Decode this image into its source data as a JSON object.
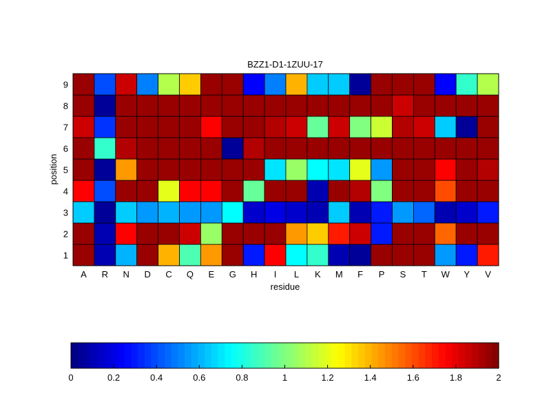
{
  "chart_data": {
    "type": "heatmap",
    "title": "BZZ1-D1-1ZUU-17",
    "xlabel": "residue",
    "ylabel": "position",
    "x": [
      "A",
      "R",
      "N",
      "D",
      "C",
      "Q",
      "E",
      "G",
      "H",
      "I",
      "L",
      "K",
      "M",
      "F",
      "P",
      "S",
      "T",
      "W",
      "Y",
      "V"
    ],
    "y": [
      "1",
      "2",
      "3",
      "4",
      "5",
      "6",
      "7",
      "8",
      "9"
    ],
    "values": [
      [
        1.95,
        0.1,
        0.6,
        1.95,
        1.4,
        0.9,
        1.45,
        1.95,
        0.3,
        1.75,
        0.75,
        0.85,
        0.1,
        0.05,
        1.95,
        1.95,
        1.95,
        0.55,
        0.3,
        1.7
      ],
      [
        1.95,
        0.1,
        1.75,
        1.95,
        1.95,
        1.85,
        1.05,
        1.95,
        1.95,
        1.95,
        1.45,
        1.35,
        1.7,
        1.85,
        0.3,
        1.95,
        1.95,
        1.55,
        1.95,
        1.95
      ],
      [
        0.65,
        0.05,
        0.65,
        0.55,
        0.6,
        0.55,
        0.55,
        0.75,
        0.15,
        0.2,
        0.15,
        0.1,
        0.65,
        0.1,
        0.3,
        0.55,
        0.45,
        0.1,
        0.15,
        0.3
      ],
      [
        1.75,
        0.4,
        1.95,
        1.95,
        1.2,
        1.75,
        1.75,
        1.95,
        0.95,
        1.95,
        1.95,
        0.1,
        1.95,
        1.9,
        1.0,
        1.95,
        1.95,
        1.6,
        1.95,
        1.95
      ],
      [
        1.95,
        0.05,
        1.45,
        1.95,
        1.95,
        1.95,
        1.95,
        1.95,
        1.95,
        0.7,
        1.05,
        0.75,
        0.7,
        1.2,
        0.55,
        1.95,
        1.95,
        1.75,
        1.95,
        1.9
      ],
      [
        1.95,
        0.85,
        1.9,
        1.95,
        1.95,
        1.95,
        1.95,
        0.05,
        1.9,
        1.95,
        1.95,
        1.95,
        1.95,
        1.95,
        1.95,
        1.95,
        1.95,
        1.95,
        1.95,
        1.95
      ],
      [
        1.85,
        0.35,
        1.95,
        1.95,
        1.95,
        1.95,
        1.75,
        1.95,
        1.95,
        1.9,
        1.85,
        0.95,
        1.85,
        1.0,
        1.15,
        1.9,
        1.85,
        0.65,
        0.05,
        1.95
      ],
      [
        1.95,
        0.05,
        1.95,
        1.95,
        1.95,
        1.95,
        1.95,
        1.95,
        1.95,
        1.95,
        1.95,
        1.95,
        1.95,
        1.95,
        1.95,
        1.85,
        1.95,
        1.95,
        1.95,
        1.95
      ],
      [
        1.95,
        0.4,
        1.85,
        0.5,
        1.1,
        1.35,
        1.95,
        1.95,
        0.25,
        0.5,
        1.4,
        0.65,
        0.65,
        0.05,
        1.95,
        1.95,
        1.95,
        0.25,
        0.85,
        1.1
      ]
    ],
    "colorbar": {
      "range": [
        0,
        2
      ],
      "ticks": [
        "0",
        "0.2",
        "0.4",
        "0.6",
        "0.8",
        "1",
        "1.2",
        "1.4",
        "1.6",
        "1.8",
        "2"
      ],
      "colormap": "jet",
      "position": "bottom"
    },
    "grid": false
  }
}
